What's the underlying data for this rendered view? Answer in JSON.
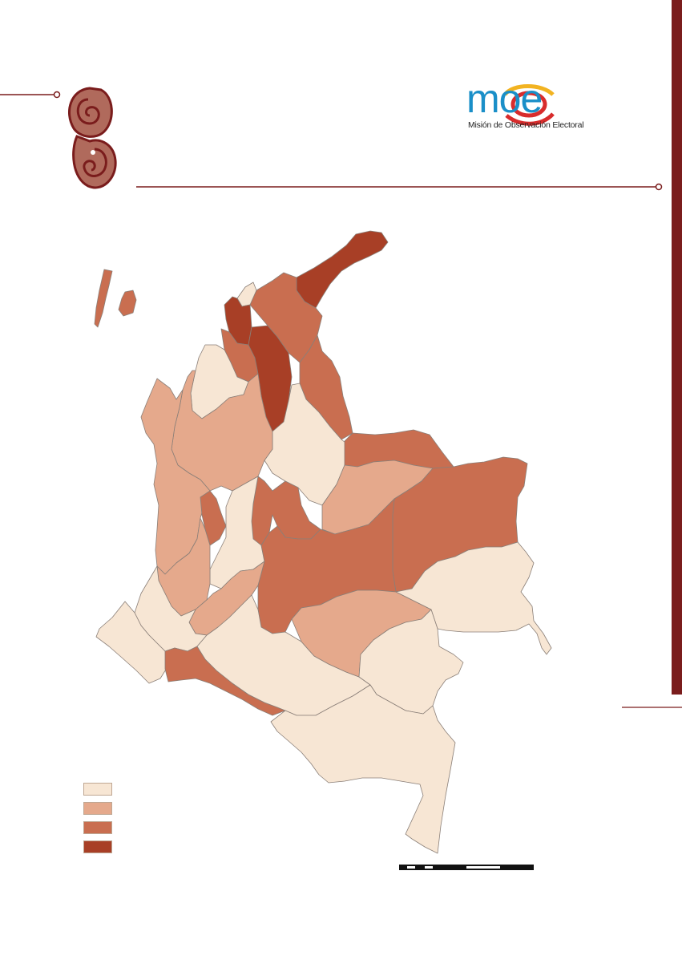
{
  "logo": {
    "wordmark": "moe",
    "subtitle": "Misión de Observación Electoral"
  },
  "colors": {
    "accent": "#7a1c1c",
    "level_1": "#f7e6d4",
    "level_2": "#e5a98c",
    "level_3": "#c96e50",
    "level_4": "#a83f26",
    "border": "#8a7f78"
  },
  "legend": {
    "items": [
      {
        "color": "#f7e6d4"
      },
      {
        "color": "#e5a98c"
      },
      {
        "color": "#c96e50"
      },
      {
        "color": "#a83f26"
      }
    ]
  },
  "icons": {
    "spiral": "spiral-ornament-icon"
  }
}
